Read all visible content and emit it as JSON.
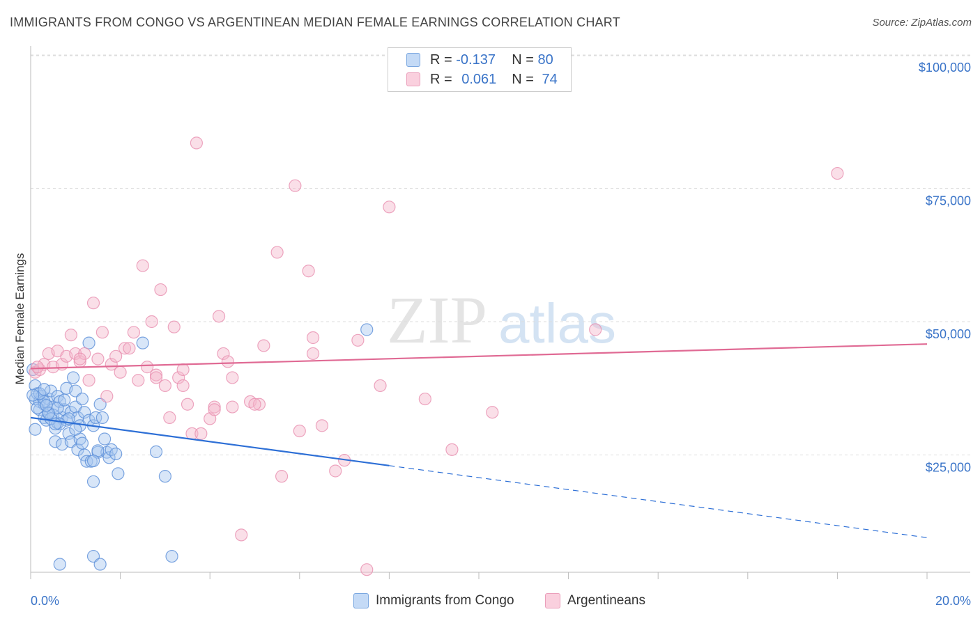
{
  "title": "IMMIGRANTS FROM CONGO VS ARGENTINEAN MEDIAN FEMALE EARNINGS CORRELATION CHART",
  "source": "Source: ZipAtlas.com",
  "watermark": {
    "zip": "ZIP",
    "atlas": "atlas"
  },
  "legend": {
    "rows": [
      {
        "r_label": "R = ",
        "r_value": "-0.137",
        "n_label": "N = ",
        "n_value": "80",
        "color": "#a8c8f0"
      },
      {
        "r_label": "R = ",
        "r_value": "0.061",
        "n_label": "N = ",
        "n_value": "74",
        "color": "#f5b8cc"
      }
    ]
  },
  "bottom_legend": [
    {
      "label": "Immigrants from Congo",
      "color": "#a8c8f0"
    },
    {
      "label": "Argentineans",
      "color": "#f5b8cc"
    }
  ],
  "chart_data": {
    "type": "scatter",
    "xlabel": "",
    "ylabel": "Median Female Earnings",
    "xlim": [
      0,
      20
    ],
    "ylim": [
      0,
      105000
    ],
    "x_tick_labels": {
      "left": "0.0%",
      "right": "20.0%"
    },
    "y_ticks": [
      {
        "value": 25000,
        "label": "$25,000"
      },
      {
        "value": 50000,
        "label": "$50,000"
      },
      {
        "value": 75000,
        "label": "$75,000"
      },
      {
        "value": 100000,
        "label": "$100,000"
      }
    ],
    "series": [
      {
        "name": "Immigrants from Congo",
        "color": "#5b8fd8",
        "fill": "#a8c8f0",
        "trend": {
          "x0": 0,
          "y0": 32000,
          "x1": 8,
          "y1": 23000,
          "dash_x1": 20,
          "dash_y1": 9500,
          "color": "#2d6fd6"
        },
        "points": [
          [
            0.05,
            41000
          ],
          [
            0.1,
            38000
          ],
          [
            0.1,
            35500
          ],
          [
            0.15,
            36500
          ],
          [
            0.2,
            35000
          ],
          [
            0.2,
            33500
          ],
          [
            0.25,
            36000
          ],
          [
            0.3,
            34500
          ],
          [
            0.3,
            32000
          ],
          [
            0.35,
            31500
          ],
          [
            0.4,
            35500
          ],
          [
            0.4,
            33000
          ],
          [
            0.45,
            37000
          ],
          [
            0.5,
            34000
          ],
          [
            0.5,
            32500
          ],
          [
            0.55,
            30000
          ],
          [
            0.55,
            27500
          ],
          [
            0.6,
            36000
          ],
          [
            0.6,
            31000
          ],
          [
            0.65,
            35000
          ],
          [
            0.7,
            32000
          ],
          [
            0.7,
            27000
          ],
          [
            0.75,
            33500
          ],
          [
            0.8,
            37500
          ],
          [
            0.8,
            31500
          ],
          [
            0.85,
            29000
          ],
          [
            0.9,
            33000
          ],
          [
            0.9,
            27500
          ],
          [
            0.95,
            39500
          ],
          [
            1.0,
            37000
          ],
          [
            1.0,
            34000
          ],
          [
            1.05,
            32000
          ],
          [
            1.05,
            26000
          ],
          [
            1.1,
            30500
          ],
          [
            1.1,
            28000
          ],
          [
            1.15,
            35500
          ],
          [
            1.2,
            33000
          ],
          [
            1.2,
            25000
          ],
          [
            1.25,
            23800
          ],
          [
            1.3,
            31500
          ],
          [
            1.3,
            46000
          ],
          [
            1.35,
            23800
          ],
          [
            1.4,
            30500
          ],
          [
            1.45,
            32000
          ],
          [
            1.5,
            25500
          ],
          [
            1.55,
            34500
          ],
          [
            1.6,
            32000
          ],
          [
            1.65,
            28000
          ],
          [
            1.7,
            25500
          ],
          [
            1.75,
            24500
          ],
          [
            1.8,
            26000
          ],
          [
            1.9,
            25200
          ],
          [
            1.95,
            21500
          ],
          [
            2.5,
            46000
          ],
          [
            2.8,
            25600
          ],
          [
            3.0,
            21000
          ],
          [
            1.4,
            20000
          ],
          [
            0.3,
            35000
          ],
          [
            0.45,
            31800
          ],
          [
            0.2,
            36500
          ],
          [
            0.6,
            33800
          ],
          [
            0.75,
            35300
          ],
          [
            0.4,
            32800
          ],
          [
            0.15,
            33800
          ],
          [
            0.65,
            30800
          ],
          [
            1.0,
            29800
          ],
          [
            0.85,
            31800
          ],
          [
            0.55,
            30800
          ],
          [
            0.35,
            34300
          ],
          [
            1.15,
            27200
          ],
          [
            1.5,
            25800
          ],
          [
            0.3,
            37300
          ],
          [
            0.1,
            29800
          ],
          [
            0.05,
            36200
          ],
          [
            1.4,
            23900
          ],
          [
            0.65,
            4500
          ],
          [
            1.4,
            6000
          ],
          [
            1.55,
            4500
          ],
          [
            3.15,
            6000
          ],
          [
            7.5,
            48500
          ]
        ]
      },
      {
        "name": "Argentineans",
        "color": "#e890b0",
        "fill": "#f5b8cc",
        "trend": {
          "x0": 0,
          "y0": 41200,
          "x1": 20,
          "y1": 45800,
          "color": "#e06a94"
        },
        "points": [
          [
            0.1,
            40500
          ],
          [
            0.2,
            41000
          ],
          [
            0.3,
            42000
          ],
          [
            0.4,
            44000
          ],
          [
            0.5,
            41500
          ],
          [
            0.6,
            44500
          ],
          [
            0.7,
            42000
          ],
          [
            0.8,
            43500
          ],
          [
            0.9,
            47500
          ],
          [
            1.0,
            44000
          ],
          [
            1.1,
            42500
          ],
          [
            1.2,
            44000
          ],
          [
            1.3,
            39000
          ],
          [
            1.4,
            53500
          ],
          [
            1.5,
            43000
          ],
          [
            1.6,
            48000
          ],
          [
            1.7,
            36000
          ],
          [
            1.8,
            42000
          ],
          [
            1.9,
            43500
          ],
          [
            2.0,
            40500
          ],
          [
            2.1,
            45000
          ],
          [
            2.2,
            45000
          ],
          [
            2.3,
            48000
          ],
          [
            2.4,
            39000
          ],
          [
            2.5,
            60500
          ],
          [
            2.6,
            41500
          ],
          [
            2.7,
            50000
          ],
          [
            2.8,
            40000
          ],
          [
            2.9,
            56000
          ],
          [
            3.0,
            38000
          ],
          [
            3.1,
            32000
          ],
          [
            3.2,
            49000
          ],
          [
            3.3,
            39500
          ],
          [
            3.4,
            38000
          ],
          [
            3.5,
            34500
          ],
          [
            3.6,
            29000
          ],
          [
            3.7,
            83500
          ],
          [
            3.8,
            29000
          ],
          [
            4.0,
            31800
          ],
          [
            4.1,
            34000
          ],
          [
            4.2,
            51000
          ],
          [
            4.3,
            44000
          ],
          [
            4.4,
            42500
          ],
          [
            4.5,
            39500
          ],
          [
            4.5,
            34000
          ],
          [
            4.7,
            10000
          ],
          [
            4.9,
            35000
          ],
          [
            5.1,
            34500
          ],
          [
            5.2,
            45500
          ],
          [
            5.5,
            63000
          ],
          [
            5.6,
            21000
          ],
          [
            5.9,
            75500
          ],
          [
            6.0,
            29500
          ],
          [
            6.2,
            59500
          ],
          [
            6.3,
            47000
          ],
          [
            6.3,
            44000
          ],
          [
            6.5,
            30500
          ],
          [
            6.8,
            22000
          ],
          [
            7.0,
            24000
          ],
          [
            7.3,
            46500
          ],
          [
            7.5,
            3500
          ],
          [
            7.8,
            38000
          ],
          [
            8.0,
            71500
          ],
          [
            8.8,
            35500
          ],
          [
            9.4,
            26000
          ],
          [
            10.3,
            33000
          ],
          [
            12.6,
            48500
          ],
          [
            18.0,
            77800
          ],
          [
            0.15,
            41500
          ],
          [
            1.1,
            43000
          ],
          [
            2.8,
            39500
          ],
          [
            3.4,
            41000
          ],
          [
            4.1,
            33500
          ],
          [
            5.0,
            34500
          ]
        ]
      }
    ]
  }
}
